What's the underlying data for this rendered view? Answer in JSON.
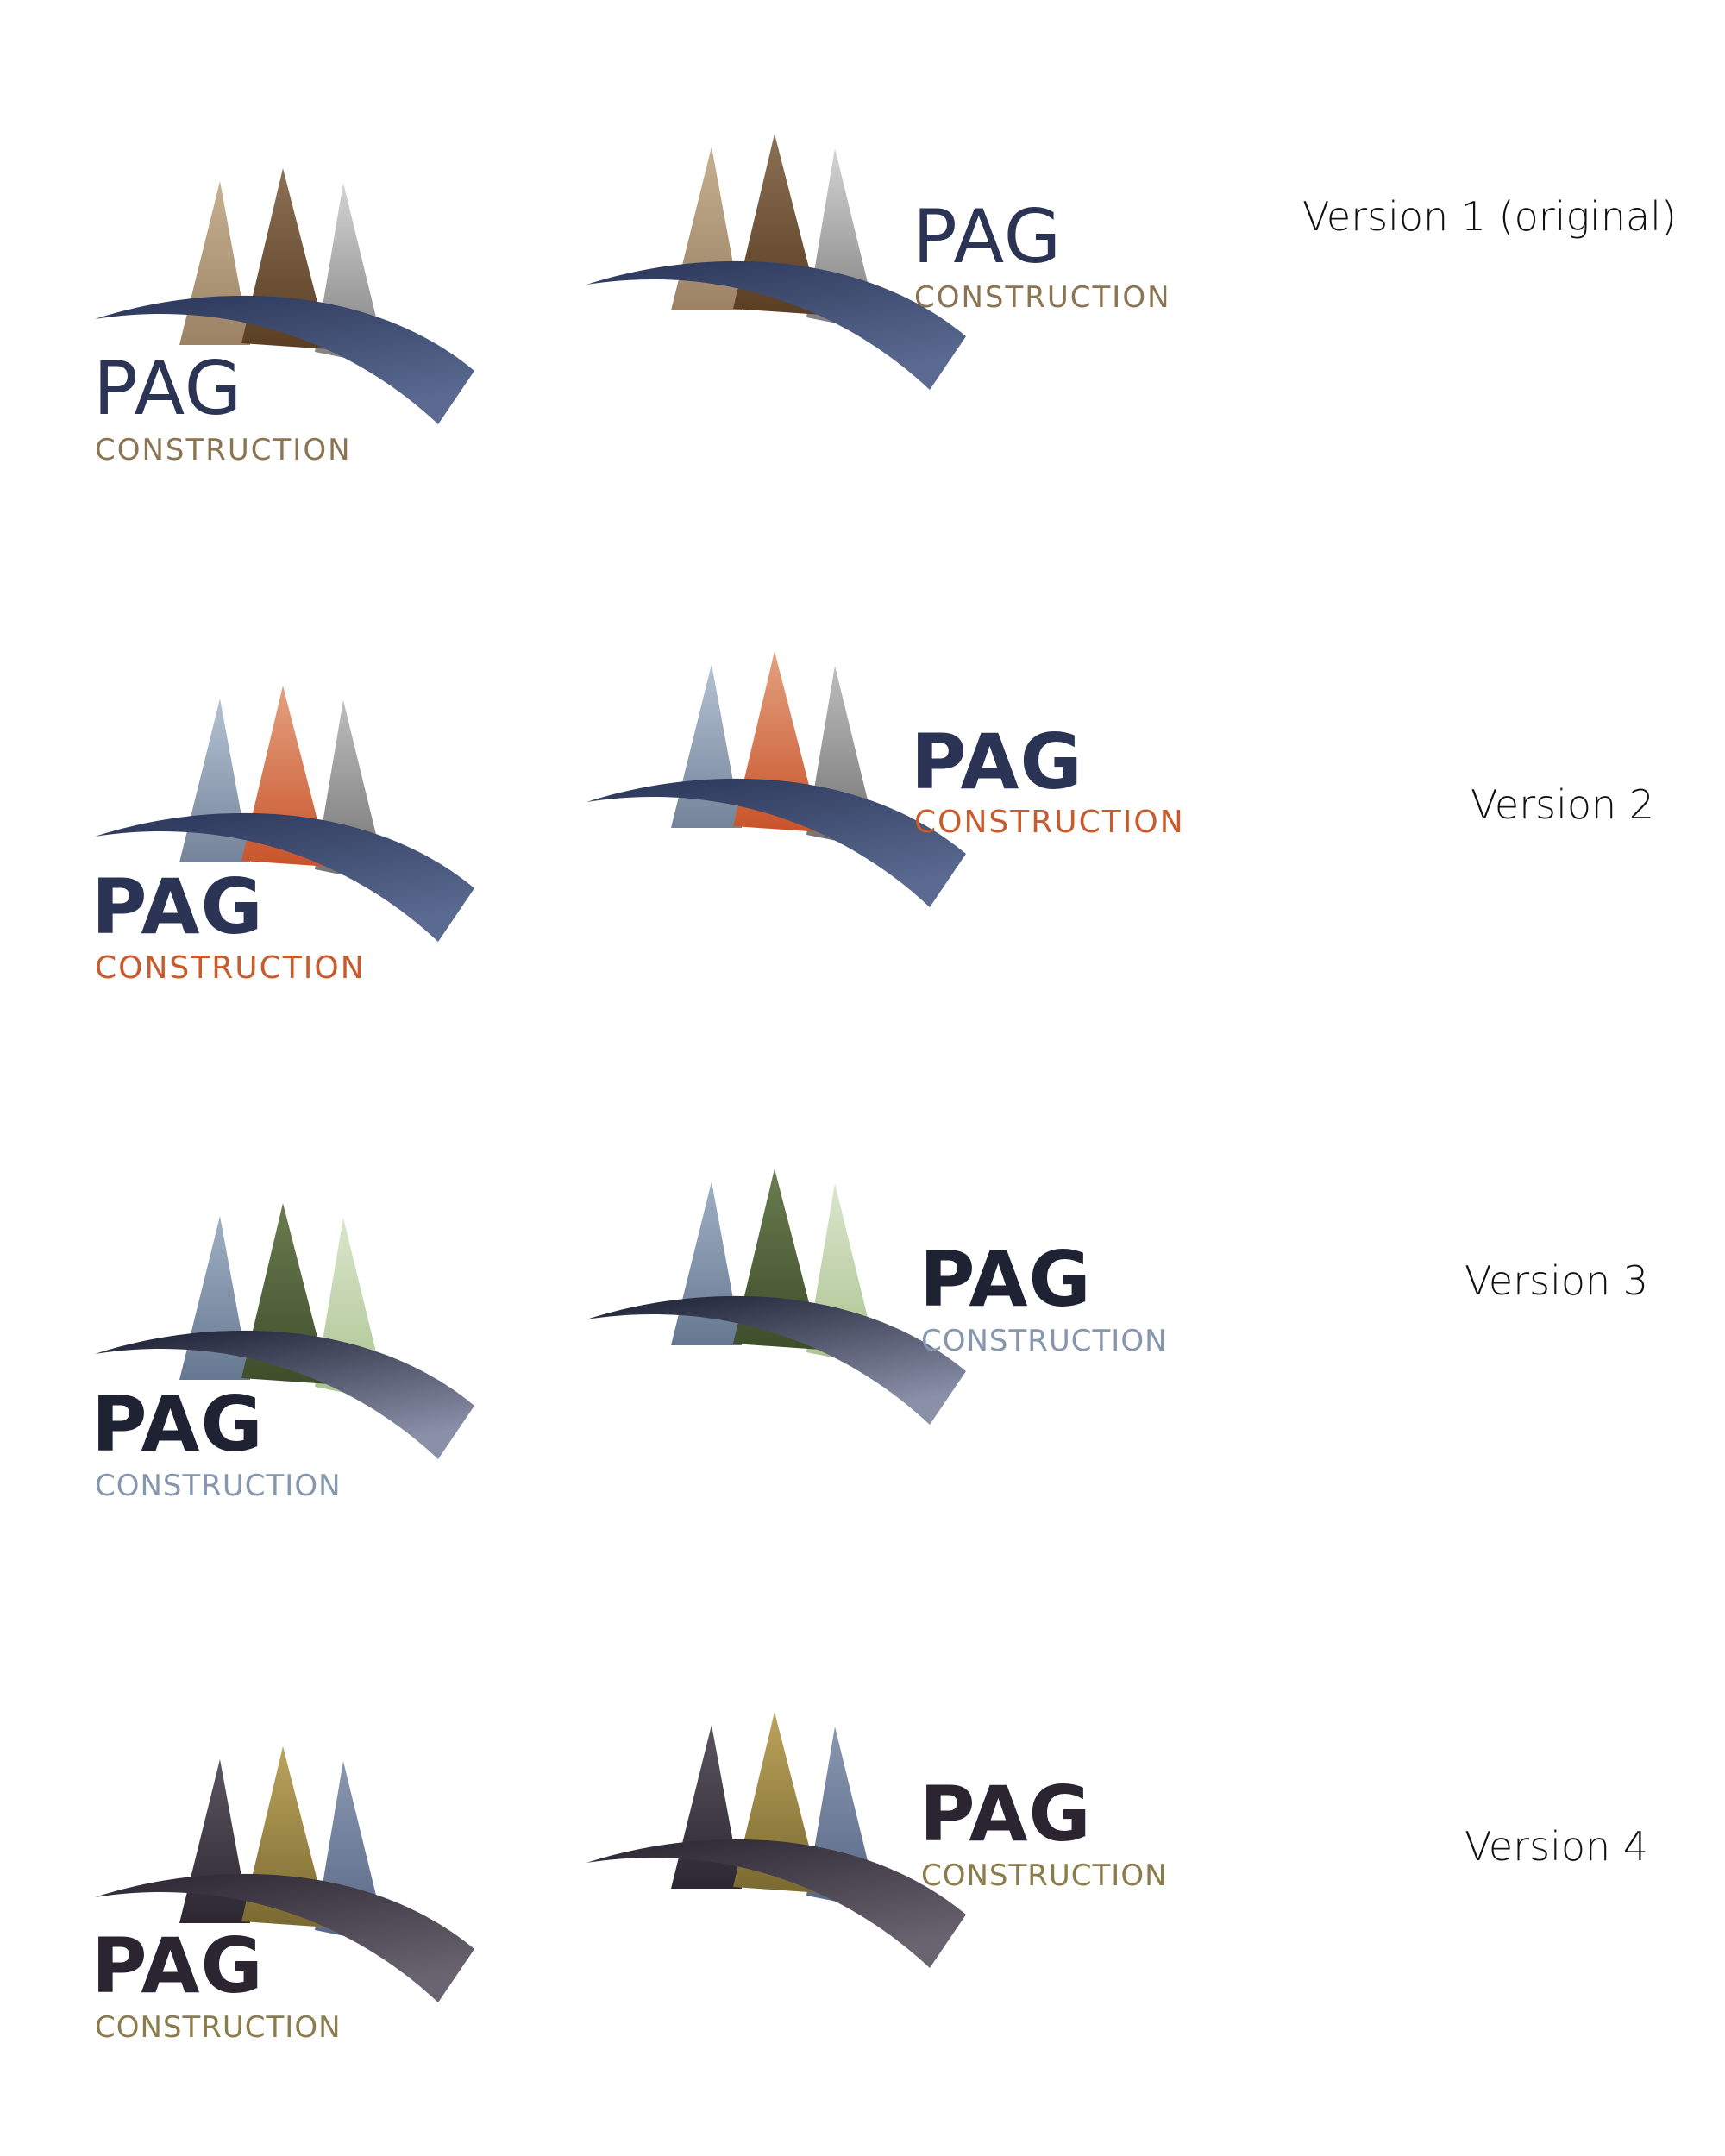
{
  "versions": [
    {
      "label": "Version 1 (original)",
      "wordmark": "PAG",
      "subtitle": "CONSTRUCTION",
      "wordmark_weight": "normal",
      "colors": {
        "wordmark": "#2b3454",
        "subtitle": "#8a7451",
        "tree_left": [
          "#c6b191",
          "#9c8265"
        ],
        "tree_center": [
          "#8c7055",
          "#5a3e24"
        ],
        "tree_right": [
          "#d4d4d4",
          "#7c7c7c"
        ],
        "arc": [
          "#2a3558",
          "#5a6a90"
        ]
      },
      "icons": [
        "tree-left-icon",
        "tree-center-icon",
        "tree-right-icon",
        "arc-icon"
      ]
    },
    {
      "label": "Version 2",
      "wordmark": "PAG",
      "subtitle": "CONSTRUCTION",
      "wordmark_weight": "bold",
      "colors": {
        "wordmark": "#2b3454",
        "subtitle": "#c95a2c",
        "tree_left": [
          "#b4c2d3",
          "#748399"
        ],
        "tree_center": [
          "#e3a180",
          "#c9532a"
        ],
        "tree_right": [
          "#bdbdbd",
          "#707070"
        ],
        "arc": [
          "#2a3558",
          "#5a6a90"
        ]
      },
      "icons": [
        "tree-left-icon",
        "tree-center-icon",
        "tree-right-icon",
        "arc-icon"
      ]
    },
    {
      "label": "Version 3",
      "wordmark": "PAG",
      "subtitle": "CONSTRUCTION",
      "wordmark_weight": "bold",
      "colors": {
        "wordmark": "#1f2233",
        "subtitle": "#8596ad",
        "tree_left": [
          "#9fb0c4",
          "#667891"
        ],
        "tree_center": [
          "#6a7c50",
          "#3e4d2a"
        ],
        "tree_right": [
          "#dbe6cd",
          "#a9c18d"
        ],
        "arc": [
          "#1a1d30",
          "#8a90a8"
        ]
      },
      "icons": [
        "tree-left-icon",
        "tree-center-icon",
        "tree-right-icon",
        "arc-icon"
      ]
    },
    {
      "label": "Version 4",
      "wordmark": "PAG",
      "subtitle": "CONSTRUCTION",
      "wordmark_weight": "bold",
      "colors": {
        "wordmark": "#2a2530",
        "subtitle": "#8b7c4b",
        "tree_left": [
          "#5a5560",
          "#2c2730"
        ],
        "tree_center": [
          "#bba35c",
          "#7a6a30"
        ],
        "tree_right": [
          "#8997b0",
          "#576684"
        ],
        "arc": [
          "#2a2530",
          "#6a6470"
        ]
      },
      "icons": [
        "tree-left-icon",
        "tree-center-icon",
        "tree-right-icon",
        "arc-icon"
      ]
    }
  ]
}
